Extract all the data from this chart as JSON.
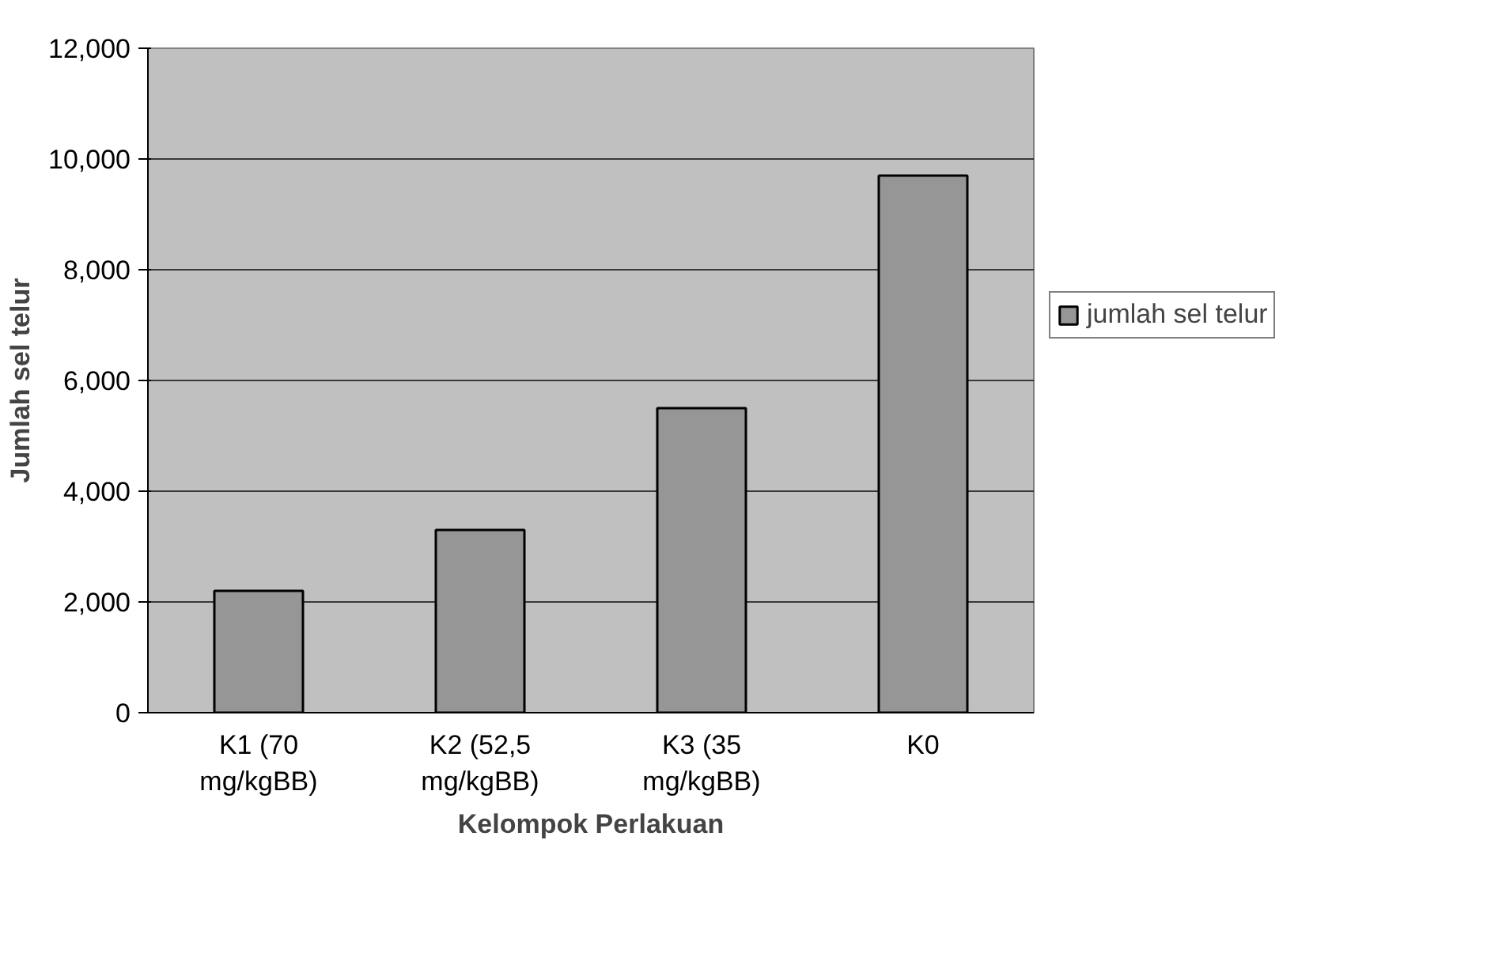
{
  "chart_data": {
    "type": "bar",
    "xlabel": "Kelompok Perlakuan",
    "ylabel": "Jumlah sel telur",
    "categories": [
      "K1 (70 mg/kgBB)",
      "K2 (52,5 mg/kgBB)",
      "K3 (35 mg/kgBB)",
      "K0"
    ],
    "series": [
      {
        "name": "jumlah sel telur",
        "color": "#969696",
        "values": [
          2200,
          3300,
          5500,
          9700
        ]
      }
    ],
    "ylim": [
      0,
      12000
    ],
    "yticks": [
      {
        "value": 0,
        "label": "0"
      },
      {
        "value": 2000,
        "label": "2,000"
      },
      {
        "value": 4000,
        "label": "4,000"
      },
      {
        "value": 6000,
        "label": "6,000"
      },
      {
        "value": 8000,
        "label": "8,000"
      },
      {
        "value": 10000,
        "label": "10,000"
      },
      {
        "value": 12000,
        "label": "12,000"
      }
    ],
    "grid": "y",
    "legend": "right"
  }
}
